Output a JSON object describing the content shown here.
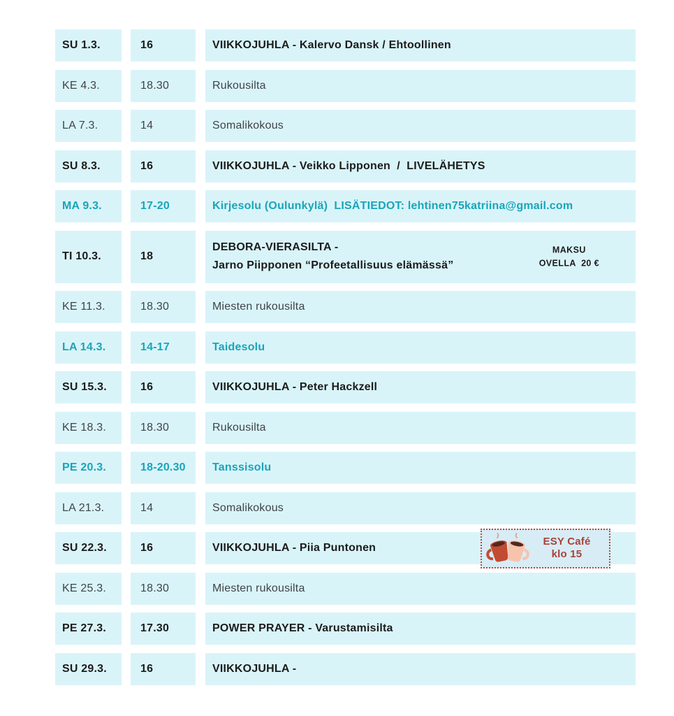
{
  "colors": {
    "cell_background": "#d9f4f9",
    "teal_text": "#19a5b9",
    "bold_text": "#1c1c1c",
    "regular_text": "#3f4448",
    "badge_border": "#b44a40",
    "badge_text": "#a8423a",
    "badge_background": "#d8ecf5",
    "mug_dark": "#c24b33",
    "mug_light": "#f7c3ad",
    "coffee": "#53281a"
  },
  "table": {
    "rows": [
      {
        "date": "SU 1.3.",
        "time": "16",
        "event": "VIIKKOJUHLA - Kalervo Dansk / Ehtoollinen",
        "style": "bold"
      },
      {
        "date": "KE 4.3.",
        "time": "18.30",
        "event": "Rukousilta",
        "style": "regular"
      },
      {
        "date": "LA 7.3.",
        "time": "14",
        "event": "Somalikokous",
        "style": "regular"
      },
      {
        "date": "SU 8.3.",
        "time": "16",
        "event": "VIIKKOJUHLA - Veikko Lipponen  /  LIVELÄHETYS",
        "style": "bold"
      },
      {
        "date": "MA 9.3.",
        "time": "17-20",
        "event": "Kirjesolu (Oulunkylä)  LISÄTIEDOT: lehtinen75katriina@gmail.com",
        "style": "teal"
      },
      {
        "date": "TI 10.3.",
        "time": "18",
        "event_lines": [
          "DEBORA-VIERASILTA -",
          "Jarno Piipponen “Profeetallisuus elämässä”"
        ],
        "note_lines": [
          "MAKSU",
          "OVELLA  20 €"
        ],
        "style": "bold",
        "tall": true
      },
      {
        "date": "KE 11.3.",
        "time": "18.30",
        "event": "Miesten rukousilta",
        "style": "regular"
      },
      {
        "date": "LA 14.3.",
        "time": "14-17",
        "event": "Taidesolu",
        "style": "teal"
      },
      {
        "date": "SU 15.3.",
        "time": "16",
        "event": "VIIKKOJUHLA - Peter Hackzell",
        "style": "bold"
      },
      {
        "date": "KE 18.3.",
        "time": "18.30",
        "event": "Rukousilta",
        "style": "regular"
      },
      {
        "date": "PE 20.3.",
        "time": "18-20.30",
        "event": "Tanssisolu",
        "style": "teal"
      },
      {
        "date": "LA 21.3.",
        "time": "14",
        "event": "Somalikokous",
        "style": "regular"
      },
      {
        "date": "SU 22.3.",
        "time": "16",
        "event": "VIIKKOJUHLA - Piia Puntonen",
        "style": "bold",
        "badge": {
          "icon": "coffee-mugs-icon",
          "lines": [
            "ESY Café",
            "klo 15"
          ]
        }
      },
      {
        "date": "KE 25.3.",
        "time": "18.30",
        "event": "Miesten rukousilta",
        "style": "regular"
      },
      {
        "date": "PE 27.3.",
        "time": "17.30",
        "event": "POWER PRAYER - Varustamisilta",
        "style": "bold"
      },
      {
        "date": "SU 29.3.",
        "time": "16",
        "event": "VIIKKOJUHLA -",
        "style": "bold"
      }
    ]
  }
}
